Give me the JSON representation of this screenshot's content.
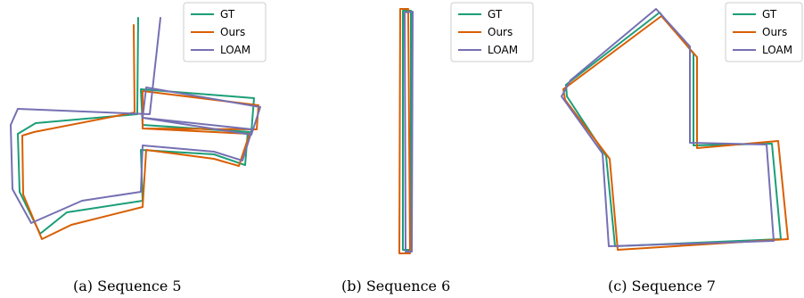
{
  "chart_data": [
    {
      "type": "line",
      "caption": "(a) Sequence 5",
      "legend": {
        "placement": "top-right"
      },
      "series": [
        {
          "name": "GT",
          "color": "#1b9e77",
          "points": [
            [
              155,
              20
            ],
            [
              154,
              128
            ],
            [
              40,
              138
            ],
            [
              20,
              150
            ],
            [
              22,
              215
            ],
            [
              45,
              262
            ],
            [
              75,
              238
            ],
            [
              160,
              225
            ],
            [
              158,
              168
            ],
            [
              240,
              173
            ],
            [
              275,
              185
            ],
            [
              278,
              148
            ],
            [
              160,
              140
            ],
            [
              158,
              100
            ],
            [
              285,
              110
            ],
            [
              282,
              148
            ],
            [
              160,
              140
            ]
          ]
        },
        {
          "name": "Ours",
          "color": "#d95f02",
          "points": [
            [
              150,
              28
            ],
            [
              151,
              126
            ],
            [
              38,
              148
            ],
            [
              25,
              152
            ],
            [
              26,
              218
            ],
            [
              47,
              268
            ],
            [
              80,
              252
            ],
            [
              160,
              232
            ],
            [
              164,
              168
            ],
            [
              240,
              178
            ],
            [
              268,
              186
            ],
            [
              280,
              150
            ],
            [
              160,
              144
            ],
            [
              160,
              102
            ],
            [
              290,
              118
            ],
            [
              288,
              145
            ],
            [
              160,
              144
            ]
          ]
        },
        {
          "name": "LOAM",
          "color": "#7570b3",
          "points": [
            [
              180,
              20
            ],
            [
              168,
              128
            ],
            [
              20,
              122
            ],
            [
              12,
              140
            ],
            [
              14,
              212
            ],
            [
              35,
              250
            ],
            [
              92,
              225
            ],
            [
              158,
              215
            ],
            [
              160,
              163
            ],
            [
              240,
              170
            ],
            [
              272,
              180
            ],
            [
              283,
              145
            ],
            [
              160,
              132
            ],
            [
              164,
              98
            ],
            [
              292,
              120
            ],
            [
              282,
              151
            ],
            [
              160,
              132
            ]
          ]
        }
      ]
    },
    {
      "type": "line",
      "caption": "(b) Sequence 6",
      "legend": {
        "placement": "top-right"
      },
      "series": [
        {
          "name": "GT",
          "color": "#1b9e77",
          "points": [
            [
              452,
              12
            ],
            [
              461,
              12
            ],
            [
              461,
              280
            ],
            [
              452,
              280
            ],
            [
              452,
              12
            ]
          ]
        },
        {
          "name": "Ours",
          "color": "#d95f02",
          "points": [
            [
              449,
              10
            ],
            [
              458,
              10
            ],
            [
              460,
              284
            ],
            [
              448,
              284
            ],
            [
              449,
              10
            ]
          ]
        },
        {
          "name": "LOAM",
          "color": "#7570b3",
          "points": [
            [
              454,
              14
            ],
            [
              463,
              13
            ],
            [
              462,
              282
            ],
            [
              455,
              282
            ],
            [
              454,
              14
            ]
          ]
        }
      ]
    },
    {
      "type": "line",
      "caption": "(c) Sequence 7",
      "legend": {
        "placement": "top-right"
      },
      "series": [
        {
          "name": "GT",
          "color": "#1b9e77",
          "points": [
            [
              635,
              95
            ],
            [
              740,
              14
            ],
            [
              778,
              60
            ],
            [
              778,
              163
            ],
            [
              866,
              161
            ],
            [
              876,
              268
            ],
            [
              690,
              276
            ],
            [
              680,
              175
            ],
            [
              636,
              108
            ],
            [
              635,
              95
            ]
          ]
        },
        {
          "name": "Ours",
          "color": "#d95f02",
          "points": [
            [
              632,
              100
            ],
            [
              742,
              18
            ],
            [
              782,
              64
            ],
            [
              782,
              166
            ],
            [
              873,
              158
            ],
            [
              884,
              268
            ],
            [
              693,
              280
            ],
            [
              684,
              178
            ],
            [
              634,
              112
            ],
            [
              632,
              100
            ]
          ]
        },
        {
          "name": "LOAM",
          "color": "#7570b3",
          "points": [
            [
              640,
              90
            ],
            [
              736,
              10
            ],
            [
              774,
              52
            ],
            [
              774,
              160
            ],
            [
              860,
              162
            ],
            [
              868,
              270
            ],
            [
              683,
              276
            ],
            [
              676,
              172
            ],
            [
              630,
              108
            ],
            [
              640,
              90
            ]
          ]
        }
      ]
    }
  ]
}
